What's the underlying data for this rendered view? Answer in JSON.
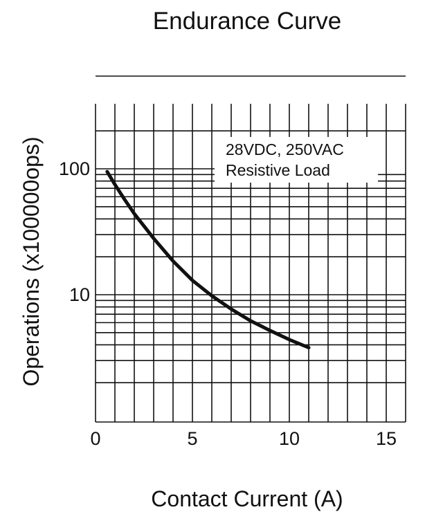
{
  "chart_data": {
    "type": "line",
    "title": "Endurance Curve",
    "xlabel": "Contact Current (A)",
    "ylabel": "Operations (x100000ops)",
    "yscale": "log",
    "xlim": [
      0,
      16
    ],
    "ylim": [
      1,
      250
    ],
    "xticks": [
      {
        "value": 0,
        "label": "0"
      },
      {
        "value": 5,
        "label": "5"
      },
      {
        "value": 10,
        "label": "10"
      },
      {
        "value": 15,
        "label": "15"
      }
    ],
    "yticks": [
      {
        "value": 10,
        "label": "10"
      },
      {
        "value": 100,
        "label": "100"
      }
    ],
    "grid": true,
    "annotation": [
      "28VDC, 250VAC",
      "Resistive Load"
    ],
    "series": [
      {
        "name": "28VDC, 250VAC Resistive Load",
        "x": [
          0.6,
          1,
          1.5,
          2,
          3,
          4,
          5,
          6,
          7,
          8,
          9,
          10,
          11
        ],
        "values": [
          95,
          75,
          57,
          44,
          28,
          18.5,
          13,
          9.8,
          7.7,
          6.2,
          5.2,
          4.4,
          3.8
        ]
      }
    ]
  }
}
